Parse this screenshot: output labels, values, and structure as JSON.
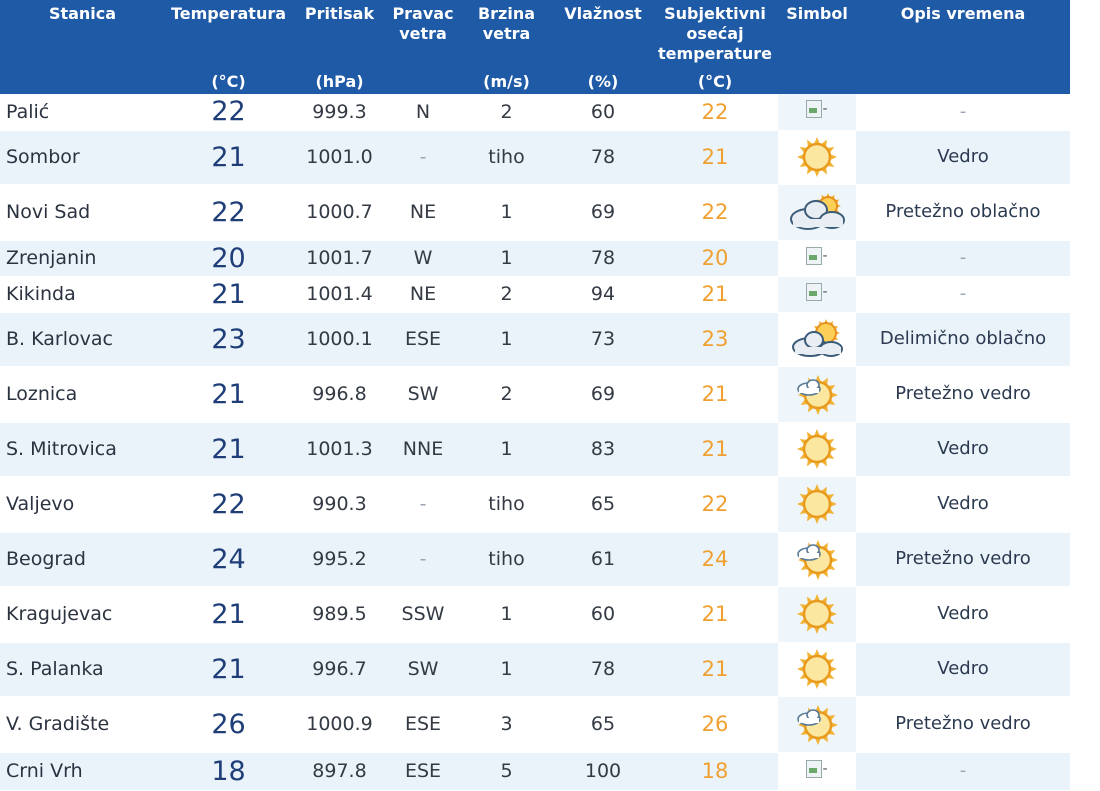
{
  "header": {
    "station": "Stanica",
    "temperature": "Temperatura",
    "temperature_unit": "(°C)",
    "pressure": "Pritisak",
    "pressure_unit": "(hPa)",
    "wind_dir": "Pravac vetra",
    "wind_speed": "Brzina vetra",
    "wind_speed_unit": "(m/s)",
    "humidity": "Vlažnost",
    "humidity_unit": "(%)",
    "feels_like": "Subjektivni osećaj temperature",
    "feels_like_unit": "(°C)",
    "symbol": "Simbol",
    "description": "Opis vremena"
  },
  "rows": [
    {
      "station": "Palić",
      "temp": "22",
      "pressure": "999.3",
      "dir": "N",
      "speed": "2",
      "humidity": "60",
      "feel": "22",
      "icon": "broken-image-icon",
      "desc": "-"
    },
    {
      "station": "Sombor",
      "temp": "21",
      "pressure": "1001.0",
      "dir": "-",
      "speed": "tiho",
      "humidity": "78",
      "feel": "21",
      "icon": "sun-icon",
      "desc": "Vedro"
    },
    {
      "station": "Novi Sad",
      "temp": "22",
      "pressure": "1000.7",
      "dir": "NE",
      "speed": "1",
      "humidity": "69",
      "feel": "22",
      "icon": "mostly-cloudy-icon",
      "desc": "Pretežno oblačno"
    },
    {
      "station": "Zrenjanin",
      "temp": "20",
      "pressure": "1001.7",
      "dir": "W",
      "speed": "1",
      "humidity": "78",
      "feel": "20",
      "icon": "broken-image-icon",
      "desc": "-"
    },
    {
      "station": "Kikinda",
      "temp": "21",
      "pressure": "1001.4",
      "dir": "NE",
      "speed": "2",
      "humidity": "94",
      "feel": "21",
      "icon": "broken-image-icon",
      "desc": "-"
    },
    {
      "station": "B. Karlovac",
      "temp": "23",
      "pressure": "1000.1",
      "dir": "ESE",
      "speed": "1",
      "humidity": "73",
      "feel": "23",
      "icon": "partly-cloudy-icon",
      "desc": "Delimično oblačno"
    },
    {
      "station": "Loznica",
      "temp": "21",
      "pressure": "996.8",
      "dir": "SW",
      "speed": "2",
      "humidity": "69",
      "feel": "21",
      "icon": "sun-small-cloud-icon",
      "desc": "Pretežno vedro"
    },
    {
      "station": "S. Mitrovica",
      "temp": "21",
      "pressure": "1001.3",
      "dir": "NNE",
      "speed": "1",
      "humidity": "83",
      "feel": "21",
      "icon": "sun-icon",
      "desc": "Vedro"
    },
    {
      "station": "Valjevo",
      "temp": "22",
      "pressure": "990.3",
      "dir": "-",
      "speed": "tiho",
      "humidity": "65",
      "feel": "22",
      "icon": "sun-icon",
      "desc": "Vedro"
    },
    {
      "station": "Beograd",
      "temp": "24",
      "pressure": "995.2",
      "dir": "-",
      "speed": "tiho",
      "humidity": "61",
      "feel": "24",
      "icon": "sun-small-cloud-icon",
      "desc": "Pretežno vedro"
    },
    {
      "station": "Kragujevac",
      "temp": "21",
      "pressure": "989.5",
      "dir": "SSW",
      "speed": "1",
      "humidity": "60",
      "feel": "21",
      "icon": "sun-icon",
      "desc": "Vedro"
    },
    {
      "station": "S. Palanka",
      "temp": "21",
      "pressure": "996.7",
      "dir": "SW",
      "speed": "1",
      "humidity": "78",
      "feel": "21",
      "icon": "sun-icon",
      "desc": "Vedro"
    },
    {
      "station": "V. Gradište",
      "temp": "26",
      "pressure": "1000.9",
      "dir": "ESE",
      "speed": "3",
      "humidity": "65",
      "feel": "26",
      "icon": "sun-small-cloud-icon",
      "desc": "Pretežno vedro"
    },
    {
      "station": "Crni Vrh",
      "temp": "18",
      "pressure": "897.8",
      "dir": "ESE",
      "speed": "5",
      "humidity": "100",
      "feel": "18",
      "icon": "broken-image-icon",
      "desc": "-"
    }
  ],
  "broken_image_text": "-",
  "colors": {
    "header_bg": "#1f5aa6",
    "row_alt_bg": "#eaf3fa",
    "temp_text": "#1f3e78",
    "feel_text": "#f0a030"
  }
}
